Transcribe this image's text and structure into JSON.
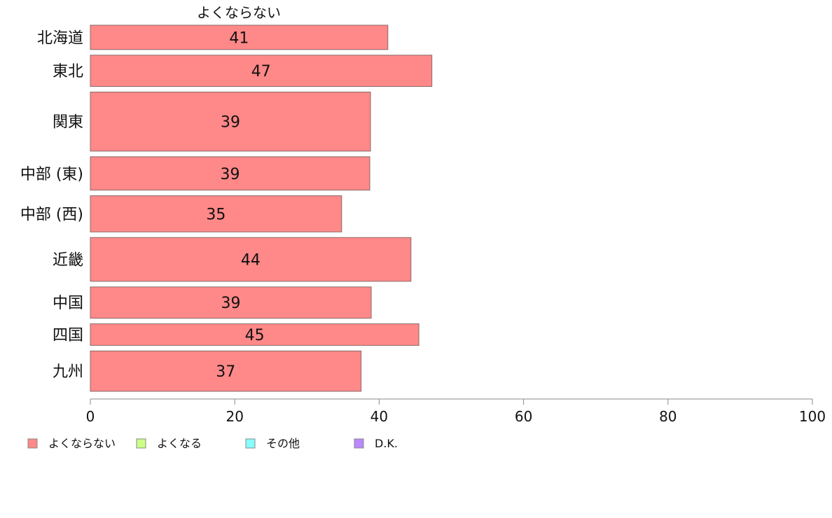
{
  "chart_data": {
    "type": "bar",
    "orientation": "horizontal",
    "title": "よくならない",
    "categories": [
      "北海道",
      "東北",
      "関東",
      "中部 (東)",
      "中部 (西)",
      "近畿",
      "中国",
      "四国",
      "九州"
    ],
    "series": [
      {
        "name": "よくならない",
        "color": "#ff8888",
        "values": [
          41.2,
          47.3,
          38.8,
          38.7,
          34.8,
          44.4,
          38.9,
          45.5,
          37.5
        ],
        "labels": [
          "41",
          "47",
          "39",
          "39",
          "35",
          "44",
          "39",
          "45",
          "37"
        ]
      }
    ],
    "category_weights": [
      3.5,
      4.5,
      8.5,
      4.8,
      5.2,
      6.3,
      4.5,
      3.1,
      5.8
    ],
    "xlim": [
      0,
      100
    ],
    "xticks": [
      0,
      20,
      40,
      60,
      80,
      100
    ],
    "xlabel": "",
    "ylabel": "",
    "grid": false,
    "legend": {
      "position": "bottom-left",
      "items": [
        {
          "label": "よくならない",
          "color": "#ff8888"
        },
        {
          "label": "よくなる",
          "color": "#ccff88"
        },
        {
          "label": "その他",
          "color": "#88ffff"
        },
        {
          "label": "D.K.",
          "color": "#bb88ff"
        }
      ]
    }
  }
}
